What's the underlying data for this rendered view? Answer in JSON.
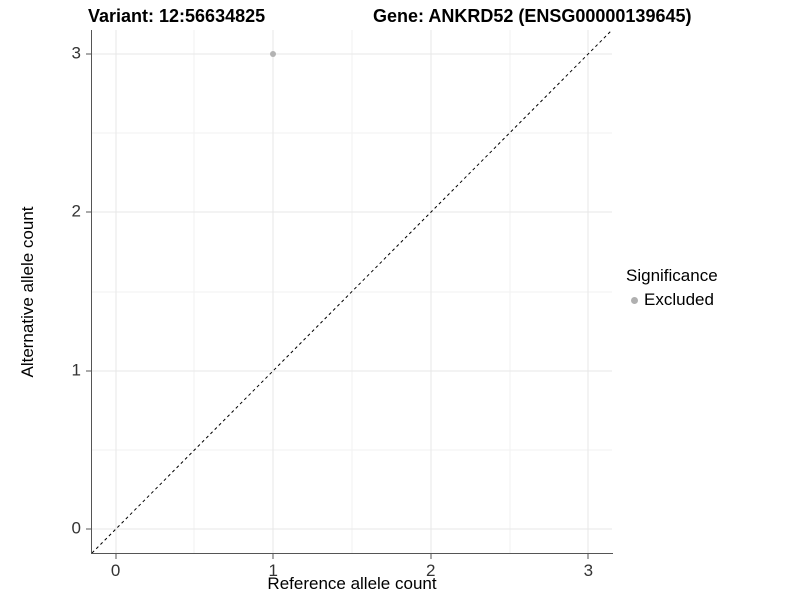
{
  "header": {
    "variant_title": "Variant: 12:56634825",
    "gene_title": "Gene: ANKRD52 (ENSG00000139645)"
  },
  "chart_data": {
    "type": "scatter",
    "xlabel": "Reference allele count",
    "ylabel": "Alternative allele count",
    "xlim": [
      -0.15,
      3.15
    ],
    "ylim": [
      -0.15,
      3.15
    ],
    "x_ticks": [
      0,
      1,
      2,
      3
    ],
    "y_ticks": [
      0,
      1,
      2,
      3
    ],
    "x_minor_ticks": [
      0.5,
      1.5,
      2.5
    ],
    "y_minor_ticks": [
      0.5,
      1.5,
      2.5
    ],
    "grid": {
      "major": true,
      "minor": true
    },
    "series": [
      {
        "name": "Excluded",
        "color": "#b3b3b3",
        "points": [
          {
            "x": 1,
            "y": 3
          }
        ]
      }
    ],
    "reference_line": {
      "kind": "abline",
      "slope": 1,
      "intercept": 0,
      "style": "dashed",
      "color": "#000000"
    },
    "legend": {
      "position": "right",
      "title": "Significance",
      "entries": [
        {
          "label": "Excluded",
          "color": "#b0b0b0"
        }
      ]
    }
  },
  "colors": {
    "background": "#ffffff",
    "grid_major": "#e7e7e7",
    "grid_minor": "#f2f2f2",
    "axis_line": "#555555",
    "tick_label": "#333333",
    "title_text": "#000000"
  }
}
